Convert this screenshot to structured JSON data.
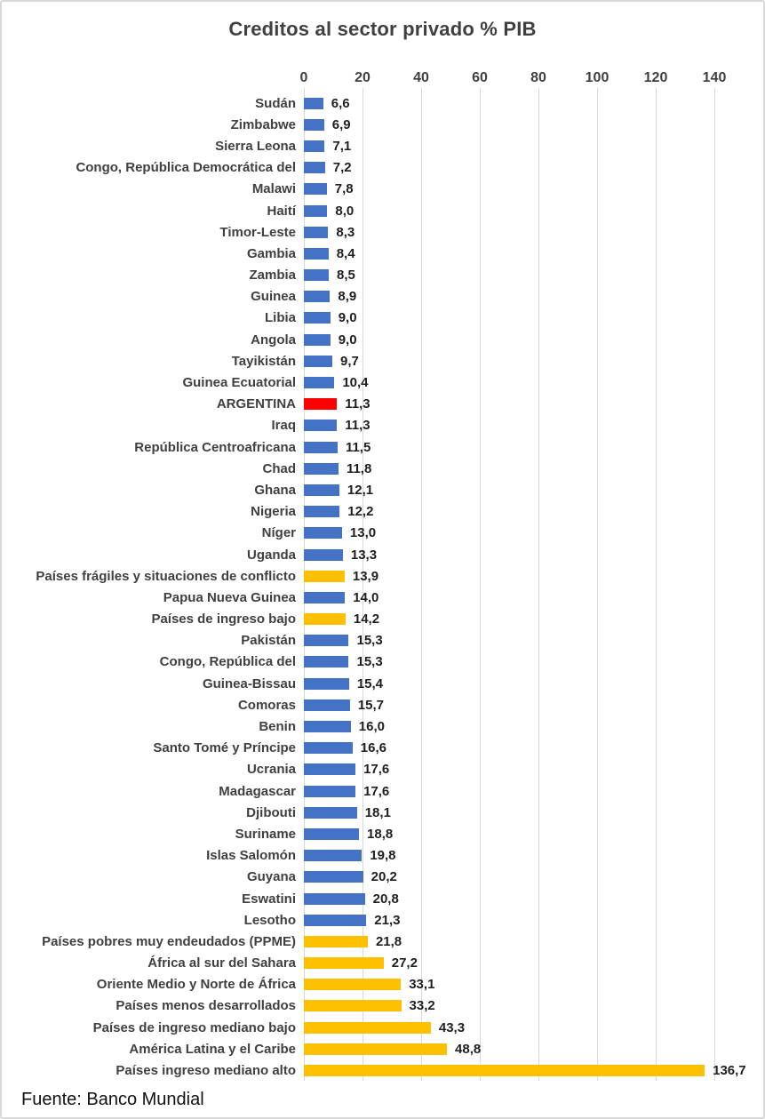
{
  "title": "Creditos al sector privado % PIB",
  "source_note": "Fuente: Banco Mundial",
  "colors": {
    "country_bar": "#4472C4",
    "aggregate_bar": "#FFC000",
    "highlight_bar": "#FF0000",
    "title_text": "#404040",
    "category_text": "#404040",
    "value_text": "#1F1F1F",
    "gridline": "#D9D9D9",
    "frame_border": "#D9D9D9"
  },
  "chart_data": {
    "type": "bar",
    "orientation": "horizontal",
    "title": "Creditos al sector privado % PIB",
    "xlabel": "",
    "ylabel": "",
    "xlim": [
      0,
      140
    ],
    "x_ticks": [
      0,
      20,
      40,
      60,
      80,
      100,
      120,
      140
    ],
    "grid": true,
    "legend": false,
    "value_decimal_separator": ",",
    "items": [
      {
        "category": "Sudán",
        "value": 6.6,
        "label": "6,6",
        "role": "country"
      },
      {
        "category": "Zimbabwe",
        "value": 6.9,
        "label": "6,9",
        "role": "country"
      },
      {
        "category": "Sierra Leona",
        "value": 7.1,
        "label": "7,1",
        "role": "country"
      },
      {
        "category": "Congo, República Democrática del",
        "value": 7.2,
        "label": "7,2",
        "role": "country"
      },
      {
        "category": "Malawi",
        "value": 7.8,
        "label": "7,8",
        "role": "country"
      },
      {
        "category": "Haití",
        "value": 8.0,
        "label": "8,0",
        "role": "country"
      },
      {
        "category": "Timor-Leste",
        "value": 8.3,
        "label": "8,3",
        "role": "country"
      },
      {
        "category": "Gambia",
        "value": 8.4,
        "label": "8,4",
        "role": "country"
      },
      {
        "category": "Zambia",
        "value": 8.5,
        "label": "8,5",
        "role": "country"
      },
      {
        "category": "Guinea",
        "value": 8.9,
        "label": "8,9",
        "role": "country"
      },
      {
        "category": "Libia",
        "value": 9.0,
        "label": "9,0",
        "role": "country"
      },
      {
        "category": "Angola",
        "value": 9.0,
        "label": "9,0",
        "role": "country"
      },
      {
        "category": "Tayikistán",
        "value": 9.7,
        "label": "9,7",
        "role": "country"
      },
      {
        "category": "Guinea Ecuatorial",
        "value": 10.4,
        "label": "10,4",
        "role": "country"
      },
      {
        "category": "ARGENTINA",
        "value": 11.3,
        "label": "11,3",
        "role": "highlight"
      },
      {
        "category": "Iraq",
        "value": 11.3,
        "label": "11,3",
        "role": "country"
      },
      {
        "category": "República Centroafricana",
        "value": 11.5,
        "label": "11,5",
        "role": "country"
      },
      {
        "category": "Chad",
        "value": 11.8,
        "label": "11,8",
        "role": "country"
      },
      {
        "category": "Ghana",
        "value": 12.1,
        "label": "12,1",
        "role": "country"
      },
      {
        "category": "Nigeria",
        "value": 12.2,
        "label": "12,2",
        "role": "country"
      },
      {
        "category": "Níger",
        "value": 13.0,
        "label": "13,0",
        "role": "country"
      },
      {
        "category": "Uganda",
        "value": 13.3,
        "label": "13,3",
        "role": "country"
      },
      {
        "category": "Países frágiles y situaciones de conflicto",
        "value": 13.9,
        "label": "13,9",
        "role": "aggregate"
      },
      {
        "category": "Papua Nueva Guinea",
        "value": 14.0,
        "label": "14,0",
        "role": "country"
      },
      {
        "category": "Países de ingreso bajo",
        "value": 14.2,
        "label": "14,2",
        "role": "aggregate"
      },
      {
        "category": "Pakistán",
        "value": 15.3,
        "label": "15,3",
        "role": "country"
      },
      {
        "category": "Congo, República del",
        "value": 15.3,
        "label": "15,3",
        "role": "country"
      },
      {
        "category": "Guinea-Bissau",
        "value": 15.4,
        "label": "15,4",
        "role": "country"
      },
      {
        "category": "Comoras",
        "value": 15.7,
        "label": "15,7",
        "role": "country"
      },
      {
        "category": "Benin",
        "value": 16.0,
        "label": "16,0",
        "role": "country"
      },
      {
        "category": "Santo Tomé y Príncipe",
        "value": 16.6,
        "label": "16,6",
        "role": "country"
      },
      {
        "category": "Ucrania",
        "value": 17.6,
        "label": "17,6",
        "role": "country"
      },
      {
        "category": "Madagascar",
        "value": 17.6,
        "label": "17,6",
        "role": "country"
      },
      {
        "category": "Djibouti",
        "value": 18.1,
        "label": "18,1",
        "role": "country"
      },
      {
        "category": "Suriname",
        "value": 18.8,
        "label": "18,8",
        "role": "country"
      },
      {
        "category": "Islas Salomón",
        "value": 19.8,
        "label": "19,8",
        "role": "country"
      },
      {
        "category": "Guyana",
        "value": 20.2,
        "label": "20,2",
        "role": "country"
      },
      {
        "category": "Eswatini",
        "value": 20.8,
        "label": "20,8",
        "role": "country"
      },
      {
        "category": "Lesotho",
        "value": 21.3,
        "label": "21,3",
        "role": "country"
      },
      {
        "category": "Países pobres muy endeudados (PPME)",
        "value": 21.8,
        "label": "21,8",
        "role": "aggregate"
      },
      {
        "category": "África al sur del Sahara",
        "value": 27.2,
        "label": "27,2",
        "role": "aggregate"
      },
      {
        "category": "Oriente Medio y Norte de África",
        "value": 33.1,
        "label": "33,1",
        "role": "aggregate"
      },
      {
        "category": "Países menos desarrollados",
        "value": 33.2,
        "label": "33,2",
        "role": "aggregate"
      },
      {
        "category": "Países de ingreso mediano bajo",
        "value": 43.3,
        "label": "43,3",
        "role": "aggregate"
      },
      {
        "category": "América Latina y el Caribe",
        "value": 48.8,
        "label": "48,8",
        "role": "aggregate"
      },
      {
        "category": "Países ingreso mediano alto",
        "value": 136.7,
        "label": "136,7",
        "role": "aggregate"
      }
    ]
  }
}
